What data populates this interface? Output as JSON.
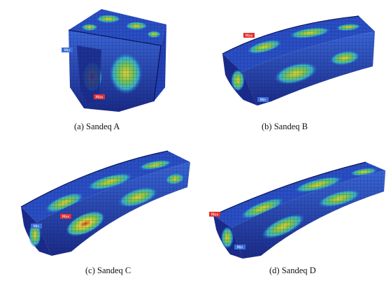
{
  "figure": {
    "panels": [
      {
        "id": "a",
        "caption": "(a)  Sandeq A",
        "tags": {
          "max": "Max",
          "min": "Min"
        }
      },
      {
        "id": "b",
        "caption": "(b)  Sandeq B",
        "tags": {
          "max": "Max",
          "min": "Min"
        }
      },
      {
        "id": "c",
        "caption": "(c)  Sandeq C",
        "tags": {
          "max": "Max",
          "min": "Min"
        }
      },
      {
        "id": "d",
        "caption": "(d) Sandeq D",
        "tags": {
          "max": "Max",
          "min": "Min"
        }
      }
    ],
    "colors": {
      "hull_deep": "#1f2f8f",
      "hull_mid": "#2b55c8",
      "stress_cyan": "#34b6c9",
      "stress_green": "#79c24a",
      "stress_yellow": "#d6d640",
      "max_tag": "#e23030",
      "min_tag": "#3a6fd8"
    }
  }
}
